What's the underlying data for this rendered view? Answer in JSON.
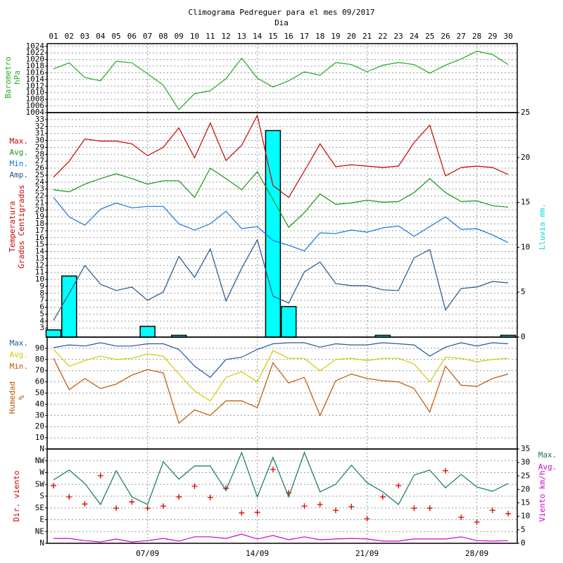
{
  "chart_data": [
    {
      "type": "line",
      "title": "Climograma Pedreguer para el mes 09/2017",
      "xlabel": "Dia",
      "categories": [
        "01",
        "02",
        "03",
        "04",
        "05",
        "06",
        "07",
        "08",
        "09",
        "10",
        "11",
        "12",
        "13",
        "14",
        "15",
        "16",
        "17",
        "18",
        "19",
        "20",
        "21",
        "22",
        "23",
        "24",
        "25",
        "26",
        "27",
        "28",
        "29",
        "30"
      ],
      "ylabel": [
        "Barometro",
        "hPa"
      ],
      "ylabel_color": "#22aa22",
      "ylim": [
        1004,
        1024.8
      ],
      "yticks": [
        1004,
        1006,
        1008,
        1010,
        1012,
        1014,
        1016,
        1018,
        1020,
        1022,
        1024
      ],
      "grid": true,
      "series": [
        {
          "color": "#22aa22",
          "values": [
            1017.2,
            1019,
            1014.6,
            1013.6,
            1019.5,
            1019,
            1015.7,
            1012.3,
            1004.9,
            1009.7,
            1010.6,
            1014.2,
            1020.4,
            1014.4,
            1011.7,
            1013.6,
            1016.3,
            1015.3,
            1019.1,
            1018.5,
            1016.3,
            1018.3,
            1019.1,
            1018.5,
            1015.9,
            1018.3,
            1020.2,
            1022.5,
            1021.5,
            1018.5
          ]
        }
      ]
    },
    {
      "type": "line",
      "ylabel": [
        "Temperatura",
        "Grados Centigrados"
      ],
      "ylabel_color": "#cc0000",
      "y2label": "Lluvia mm.",
      "y2label_color": "#00dddd",
      "ylim": [
        1.7,
        34
      ],
      "yticks": [
        3,
        4,
        5,
        6,
        7,
        8,
        9,
        10,
        11,
        12,
        13,
        14,
        15,
        16,
        17,
        18,
        19,
        20,
        21,
        22,
        23,
        24,
        25,
        26,
        27,
        28,
        29,
        30,
        31,
        32,
        33
      ],
      "y2lim": [
        0,
        25
      ],
      "y2ticks": [
        0,
        5,
        10,
        15,
        20,
        25
      ],
      "grid": true,
      "legend": "left",
      "series": [
        {
          "type": "bar",
          "axis": "y2",
          "color": "#00ffff",
          "values": [
            0.8,
            6.8,
            0,
            0,
            0,
            0,
            1.2,
            0,
            0.2,
            0,
            0,
            0,
            0,
            0,
            23,
            3.4,
            0,
            0,
            0,
            0,
            0,
            0.2,
            0,
            0,
            0,
            0,
            0,
            0,
            0,
            0.2
          ]
        },
        {
          "name": "Max.",
          "color": "#cc0000",
          "values": [
            24.7,
            27,
            30.2,
            29.9,
            29.9,
            29.5,
            27.8,
            29,
            31.8,
            27.5,
            32.5,
            27.1,
            29.3,
            33.6,
            23.5,
            21.8,
            25.6,
            29.5,
            26.2,
            26.5,
            26.3,
            26.1,
            26.3,
            29.7,
            32.2,
            24.9,
            26.1,
            26.3,
            26.1,
            25.1
          ]
        },
        {
          "name": "Avg.",
          "color": "#119911",
          "values": [
            22.9,
            22.6,
            23.7,
            24.5,
            25.2,
            24.5,
            23.7,
            24.2,
            24.2,
            21.8,
            26,
            24.5,
            22.9,
            25.5,
            21.5,
            17.5,
            19.6,
            22.3,
            20.8,
            21,
            21.4,
            21.1,
            21.2,
            22.5,
            24.5,
            22.5,
            21.2,
            21.3,
            20.6,
            20.4
          ]
        },
        {
          "name": "Min.",
          "color": "#1177dd",
          "values": [
            21.8,
            19,
            17.8,
            20.1,
            21,
            20.3,
            20.5,
            20.5,
            18,
            17.1,
            18,
            19.8,
            17.3,
            17.6,
            15.6,
            14.9,
            14.1,
            16.7,
            16.6,
            17.1,
            16.8,
            17.4,
            17.7,
            16.2,
            17.6,
            19,
            17.2,
            17.3,
            16.4,
            15.3
          ]
        },
        {
          "name": "Amp.",
          "color": "#225588",
          "values": [
            4.1,
            8,
            12,
            9.3,
            8.4,
            8.9,
            7,
            8.2,
            13.3,
            10.3,
            14.4,
            6.9,
            11.6,
            15.7,
            7.6,
            6.6,
            11.1,
            12.5,
            9.4,
            9.1,
            9.1,
            8.5,
            8.4,
            13.1,
            14.3,
            5.6,
            8.7,
            8.9,
            9.7,
            9.5
          ]
        }
      ]
    },
    {
      "type": "line",
      "ylabel": [
        "Humedad",
        "%"
      ],
      "ylabel_color": "#bb5500",
      "ylim": [
        0,
        100
      ],
      "yticks": [
        10,
        20,
        30,
        40,
        50,
        60,
        70,
        80,
        90
      ],
      "grid": true,
      "legend": "left",
      "series": [
        {
          "name": "Max.",
          "color": "#2255aa",
          "values": [
            90.7,
            93,
            92,
            95,
            92,
            92,
            94,
            94,
            89,
            74,
            64,
            80,
            82,
            89,
            94,
            95,
            95,
            91,
            94,
            93,
            93,
            95,
            94,
            93,
            83,
            91,
            95,
            92,
            95,
            94
          ]
        },
        {
          "name": "Avg.",
          "color": "#cccc00",
          "values": [
            89,
            74,
            79,
            83,
            80,
            81,
            85,
            83,
            67,
            52,
            43,
            64,
            69,
            60,
            88,
            81,
            81,
            70,
            80,
            81,
            79,
            81,
            81,
            76,
            60,
            82,
            81,
            78,
            80,
            81
          ]
        },
        {
          "name": "Min.",
          "color": "#bb5500",
          "values": [
            81,
            53,
            63,
            54,
            58,
            66,
            71,
            68,
            23,
            35,
            30,
            43,
            43,
            37,
            77,
            59,
            64,
            30,
            61,
            67,
            63,
            61,
            60,
            54,
            33,
            74,
            57,
            56,
            63,
            67
          ]
        }
      ]
    },
    {
      "type": "line",
      "ylabel": [
        "Dir. viento"
      ],
      "ylabel_color": "#cc0000",
      "y2label": "Viento km/h",
      "y2label_color": "#cc00cc",
      "ylim": [
        0,
        360
      ],
      "yticks": [
        {
          "value": 0,
          "label": "N"
        },
        {
          "value": 45,
          "label": "NE"
        },
        {
          "value": 90,
          "label": "E"
        },
        {
          "value": 135,
          "label": "SE"
        },
        {
          "value": 180,
          "label": "S"
        },
        {
          "value": 225,
          "label": "SW"
        },
        {
          "value": 270,
          "label": "W"
        },
        {
          "value": 315,
          "label": "NW"
        },
        {
          "value": 360,
          "label": "N"
        }
      ],
      "y2lim": [
        0,
        35
      ],
      "y2ticks": [
        0,
        5,
        10,
        15,
        20,
        25,
        30,
        35
      ],
      "grid": true,
      "legend": "right",
      "date_labels": [
        "07/09",
        "14/09",
        "21/09",
        "28/09"
      ],
      "date_label_days": [
        "07",
        "14",
        "21",
        "28"
      ],
      "series": [
        {
          "type": "marker",
          "color": "#dd0000",
          "values": [
            220,
            177,
            150,
            258,
            134,
            158,
            134,
            142,
            177,
            218,
            175,
            210,
            116,
            118,
            282,
            193,
            142,
            148,
            126,
            140,
            94,
            177,
            220,
            134,
            134,
            277,
            99,
            81,
            126,
            113
          ]
        },
        {
          "name": "Max.",
          "axis": "y2",
          "color": "#117755",
          "values": [
            23.5,
            27.2,
            22.2,
            14.4,
            26.9,
            17.2,
            14.4,
            30.3,
            23.8,
            28.7,
            28.7,
            19.6,
            33.7,
            17.2,
            31.9,
            17.2,
            33.7,
            19.1,
            21.9,
            29,
            22.5,
            19.1,
            14.4,
            25.3,
            27.2,
            20.6,
            25.6,
            20.9,
            19.3,
            22.2
          ]
        },
        {
          "name": "Avg.",
          "axis": "y2",
          "color": "#cc00cc",
          "values": [
            1.8,
            1.8,
            1,
            0.5,
            1.6,
            0.5,
            1,
            1.8,
            0.8,
            2.4,
            2.4,
            1.8,
            3.4,
            1.6,
            2.9,
            1.3,
            2.4,
            1.3,
            1.6,
            1.8,
            1.6,
            0.8,
            0.8,
            1.6,
            1.6,
            1.6,
            2.4,
            1,
            0.8,
            1
          ]
        }
      ]
    }
  ]
}
